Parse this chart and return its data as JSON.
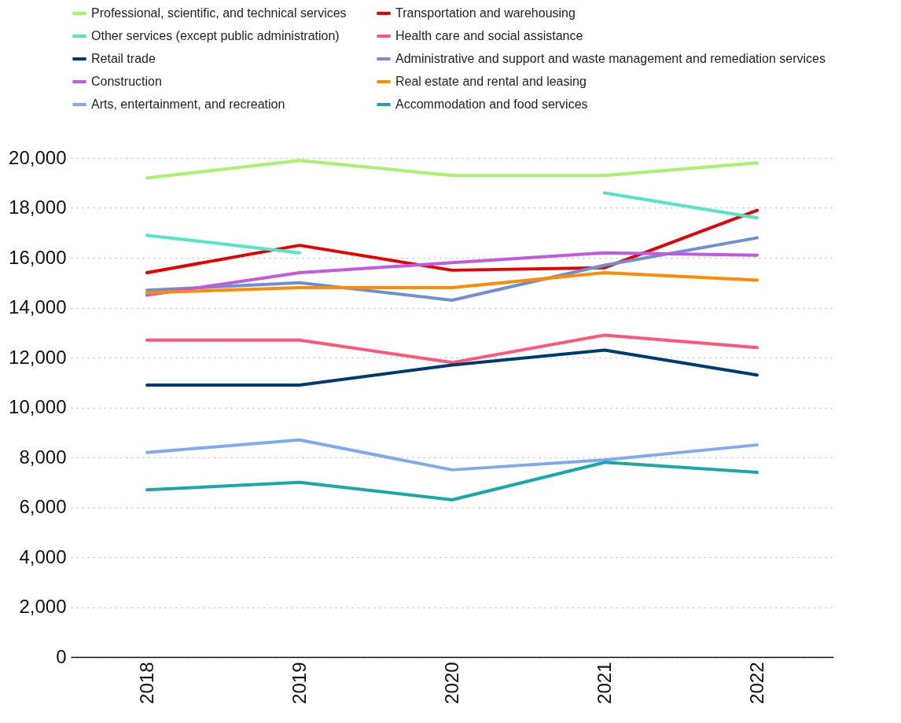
{
  "chart_data": {
    "type": "line",
    "categories": [
      "2018",
      "2019",
      "2020",
      "2021",
      "2022"
    ],
    "ylim": [
      0,
      20000
    ],
    "yticks": [
      0,
      {
        "value": 2000,
        "label": "2,000"
      },
      {
        "value": 4000,
        "label": "4,000"
      },
      {
        "value": 6000,
        "label": "6,000"
      },
      {
        "value": 8000,
        "label": "8,000"
      },
      {
        "value": 10000,
        "label": "10,000"
      },
      {
        "value": 12000,
        "label": "12,000"
      },
      {
        "value": 14000,
        "label": "14,000"
      },
      {
        "value": 16000,
        "label": "16,000"
      },
      {
        "value": 18000,
        "label": "18,000"
      },
      {
        "value": 20000,
        "label": "20,000"
      }
    ],
    "grid": "y",
    "legend": "top",
    "marker": "none",
    "line_style": "solid",
    "series": [
      {
        "name": "Professional, scientific, and technical services",
        "color": "#aaf26e",
        "values": [
          19200,
          19900,
          19300,
          19300,
          19800
        ]
      },
      {
        "name": "Transportation and warehousing",
        "color": "#e60000",
        "values": [
          15400,
          16500,
          15500,
          15600,
          17900
        ]
      },
      {
        "name": "Other services (except public administration)",
        "color": "#52e6c3",
        "values": [
          16900,
          16200,
          null,
          18600,
          17600
        ]
      },
      {
        "name": "Health care and social assistance",
        "color": "#ff5577",
        "values": [
          12700,
          12700,
          11800,
          12900,
          12400
        ]
      },
      {
        "name": "Retail trade",
        "color": "#003b6f",
        "values": [
          10900,
          10900,
          11700,
          12300,
          11300
        ]
      },
      {
        "name": "Administrative and support and waste management and remediation services",
        "color": "#6e90d2",
        "values": [
          14700,
          15000,
          14300,
          15700,
          16800
        ]
      },
      {
        "name": "Construction",
        "color": "#c25ae0",
        "values": [
          14500,
          15400,
          15800,
          16200,
          16100
        ]
      },
      {
        "name": "Real estate and rental and leasing",
        "color": "#ff8c00",
        "values": [
          14600,
          14800,
          14800,
          15400,
          15100
        ]
      },
      {
        "name": "Arts, entertainment, and recreation",
        "color": "#80aaf0",
        "values": [
          8200,
          8700,
          7500,
          7900,
          8500
        ]
      },
      {
        "name": "Accommodation and food services",
        "color": "#18a8a8",
        "values": [
          6700,
          7000,
          6300,
          7800,
          7400
        ]
      }
    ]
  }
}
